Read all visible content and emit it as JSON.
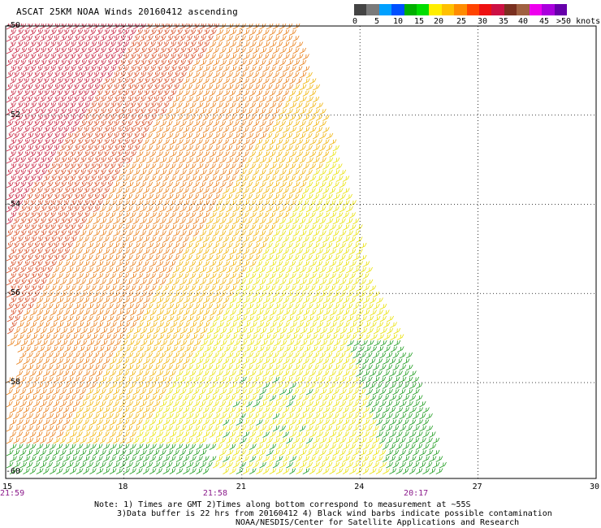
{
  "title": "ASCAT 25KM NOAA Winds 20160412 ascending",
  "color_scale": {
    "colors": [
      "#444444",
      "#7a7a7a",
      "#00a0ff",
      "#0050ff",
      "#00b000",
      "#00dd00",
      "#ffee00",
      "#ffc000",
      "#ff8c00",
      "#ff4400",
      "#ee1111",
      "#cc1144",
      "#7a3020",
      "#a06040",
      "#ee00ee",
      "#aa00dd",
      "#6600aa"
    ],
    "labels": [
      "0",
      "5",
      "10",
      "15",
      "20",
      "25",
      "30",
      "35",
      "40",
      "45",
      ">50 knots"
    ]
  },
  "map": {
    "lon_ticks": [
      "15",
      "18",
      "21",
      "24",
      "27",
      "30"
    ],
    "lat_ticks": [
      "-50",
      "-52",
      "-54",
      "-56",
      "-58",
      "-60"
    ],
    "time_labels": [
      {
        "lon": 15.05,
        "text": "21:59"
      },
      {
        "lon": 20.3,
        "text": "21:58"
      },
      {
        "lon": 25.4,
        "text": "20:17"
      }
    ],
    "wind_colors": {
      "green": "#1a9a1a",
      "yellow": "#e8e000",
      "gold": "#f0b000",
      "orange": "#e87a10",
      "redorange": "#d84a20",
      "red": "#c81e3c"
    }
  },
  "notes": {
    "line1": "Note: 1) Times are GMT 2)Times along bottom correspond to measurement at ~55S",
    "line2": "3)Data buffer is 22 hrs from 20160412 4) Black wind barbs indicate possible contamination",
    "line3": "NOAA/NESDIS/Center for Satellite Applications and Research"
  }
}
